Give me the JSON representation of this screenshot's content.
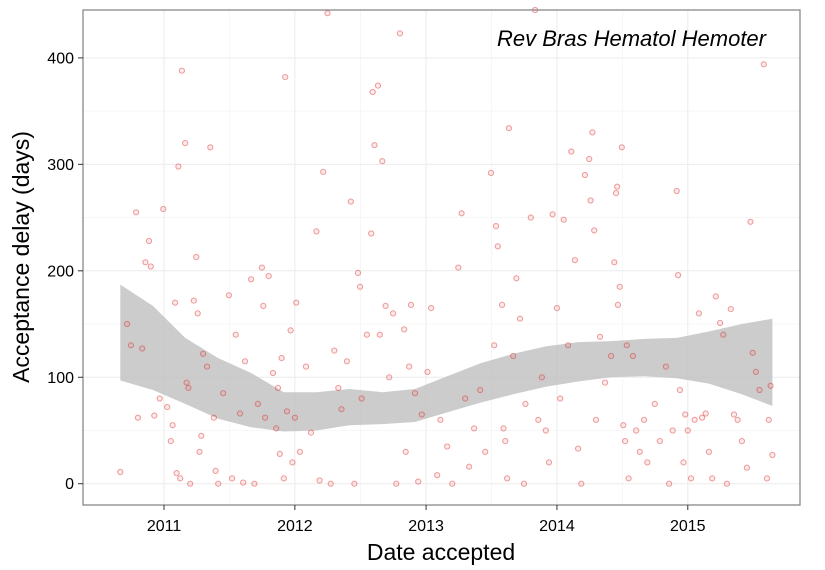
{
  "chart_data": {
    "type": "scatter",
    "title": "",
    "annotation": "Rev Bras Hematol Hemoter",
    "xlabel": "Date accepted",
    "ylabel": "Acceptance delay (days)",
    "xlim": [
      "2010-05-20",
      "2015-11-10"
    ],
    "ylim": [
      -20,
      445
    ],
    "x_ticks": [
      {
        "label": "2011",
        "value": "2011-01-01"
      },
      {
        "label": "2012",
        "value": "2012-01-01"
      },
      {
        "label": "2013",
        "value": "2013-01-01"
      },
      {
        "label": "2014",
        "value": "2014-01-01"
      },
      {
        "label": "2015",
        "value": "2015-01-01"
      }
    ],
    "y_ticks": [
      0,
      100,
      200,
      300,
      400
    ],
    "grid": true,
    "smooth": {
      "x": [
        "2010-09-01",
        "2010-12-01",
        "2011-03-01",
        "2011-06-01",
        "2011-09-01",
        "2011-12-01",
        "2012-03-01",
        "2012-06-01",
        "2012-09-01",
        "2012-12-01",
        "2013-03-01",
        "2013-06-01",
        "2013-09-01",
        "2013-12-01",
        "2014-03-01",
        "2014-06-01",
        "2014-09-01",
        "2014-12-01",
        "2015-03-01",
        "2015-06-01",
        "2015-08-25"
      ],
      "fit": [
        142,
        128,
        106,
        90,
        78,
        68,
        68,
        72,
        71,
        74,
        84,
        94,
        103,
        111,
        115,
        117,
        118,
        118,
        119,
        118,
        114
      ],
      "lower": [
        97,
        88,
        75,
        61,
        53,
        49,
        50,
        55,
        56,
        58,
        67,
        76,
        84,
        91,
        96,
        100,
        101,
        99,
        94,
        84,
        73
      ],
      "upper": [
        187,
        167,
        137,
        118,
        104,
        86,
        86,
        89,
        86,
        89,
        101,
        113,
        122,
        129,
        133,
        134,
        136,
        137,
        143,
        150,
        155
      ]
    },
    "points": [
      {
        "x": "2010-09-01",
        "y": 11
      },
      {
        "x": "2010-09-20",
        "y": 150
      },
      {
        "x": "2010-10-01",
        "y": 130
      },
      {
        "x": "2010-10-15",
        "y": 255
      },
      {
        "x": "2010-10-20",
        "y": 62
      },
      {
        "x": "2010-11-01",
        "y": 127
      },
      {
        "x": "2010-11-10",
        "y": 208
      },
      {
        "x": "2010-11-20",
        "y": 228
      },
      {
        "x": "2010-11-25",
        "y": 204
      },
      {
        "x": "2010-12-05",
        "y": 64
      },
      {
        "x": "2010-12-20",
        "y": 80
      },
      {
        "x": "2010-12-30",
        "y": 258
      },
      {
        "x": "2011-01-10",
        "y": 72
      },
      {
        "x": "2011-01-20",
        "y": 40
      },
      {
        "x": "2011-01-25",
        "y": 55
      },
      {
        "x": "2011-02-01",
        "y": 170
      },
      {
        "x": "2011-02-05",
        "y": 10
      },
      {
        "x": "2011-02-10",
        "y": 298
      },
      {
        "x": "2011-02-15",
        "y": 5
      },
      {
        "x": "2011-02-20",
        "y": 388
      },
      {
        "x": "2011-03-01",
        "y": 320
      },
      {
        "x": "2011-03-05",
        "y": 95
      },
      {
        "x": "2011-03-10",
        "y": 90
      },
      {
        "x": "2011-03-15",
        "y": 0
      },
      {
        "x": "2011-03-25",
        "y": 172
      },
      {
        "x": "2011-04-01",
        "y": 213
      },
      {
        "x": "2011-04-05",
        "y": 160
      },
      {
        "x": "2011-04-10",
        "y": 30
      },
      {
        "x": "2011-04-15",
        "y": 45
      },
      {
        "x": "2011-04-20",
        "y": 122
      },
      {
        "x": "2011-05-01",
        "y": 110
      },
      {
        "x": "2011-05-10",
        "y": 316
      },
      {
        "x": "2011-05-20",
        "y": 62
      },
      {
        "x": "2011-05-25",
        "y": 12
      },
      {
        "x": "2011-06-01",
        "y": 0
      },
      {
        "x": "2011-06-15",
        "y": 85
      },
      {
        "x": "2011-07-01",
        "y": 177
      },
      {
        "x": "2011-07-10",
        "y": 5
      },
      {
        "x": "2011-07-20",
        "y": 140
      },
      {
        "x": "2011-08-01",
        "y": 66
      },
      {
        "x": "2011-08-10",
        "y": 1
      },
      {
        "x": "2011-08-15",
        "y": 115
      },
      {
        "x": "2011-09-01",
        "y": 192
      },
      {
        "x": "2011-09-10",
        "y": 0
      },
      {
        "x": "2011-09-20",
        "y": 75
      },
      {
        "x": "2011-10-01",
        "y": 203
      },
      {
        "x": "2011-10-05",
        "y": 167
      },
      {
        "x": "2011-10-10",
        "y": 62
      },
      {
        "x": "2011-10-20",
        "y": 195
      },
      {
        "x": "2011-11-01",
        "y": 104
      },
      {
        "x": "2011-11-10",
        "y": 52
      },
      {
        "x": "2011-11-15",
        "y": 90
      },
      {
        "x": "2011-11-20",
        "y": 28
      },
      {
        "x": "2011-11-25",
        "y": 118
      },
      {
        "x": "2011-12-01",
        "y": 5
      },
      {
        "x": "2011-12-05",
        "y": 382
      },
      {
        "x": "2011-12-10",
        "y": 68
      },
      {
        "x": "2011-12-20",
        "y": 144
      },
      {
        "x": "2011-12-25",
        "y": 20
      },
      {
        "x": "2012-01-01",
        "y": 62
      },
      {
        "x": "2012-01-05",
        "y": 170
      },
      {
        "x": "2012-01-15",
        "y": 30
      },
      {
        "x": "2012-02-01",
        "y": 110
      },
      {
        "x": "2012-02-15",
        "y": 48
      },
      {
        "x": "2012-03-01",
        "y": 237
      },
      {
        "x": "2012-03-10",
        "y": 3
      },
      {
        "x": "2012-03-20",
        "y": 293
      },
      {
        "x": "2012-04-01",
        "y": 442
      },
      {
        "x": "2012-04-10",
        "y": 0
      },
      {
        "x": "2012-04-20",
        "y": 125
      },
      {
        "x": "2012-05-01",
        "y": 90
      },
      {
        "x": "2012-05-10",
        "y": 70
      },
      {
        "x": "2012-05-25",
        "y": 115
      },
      {
        "x": "2012-06-05",
        "y": 265
      },
      {
        "x": "2012-06-15",
        "y": 0
      },
      {
        "x": "2012-06-25",
        "y": 198
      },
      {
        "x": "2012-07-01",
        "y": 185
      },
      {
        "x": "2012-07-05",
        "y": 80
      },
      {
        "x": "2012-07-20",
        "y": 140
      },
      {
        "x": "2012-08-01",
        "y": 235
      },
      {
        "x": "2012-08-05",
        "y": 368
      },
      {
        "x": "2012-08-10",
        "y": 318
      },
      {
        "x": "2012-08-20",
        "y": 374
      },
      {
        "x": "2012-08-25",
        "y": 140
      },
      {
        "x": "2012-09-01",
        "y": 303
      },
      {
        "x": "2012-09-10",
        "y": 167
      },
      {
        "x": "2012-09-20",
        "y": 100
      },
      {
        "x": "2012-10-01",
        "y": 160
      },
      {
        "x": "2012-10-10",
        "y": 0
      },
      {
        "x": "2012-10-20",
        "y": 423
      },
      {
        "x": "2012-11-01",
        "y": 145
      },
      {
        "x": "2012-11-05",
        "y": 30
      },
      {
        "x": "2012-11-15",
        "y": 110
      },
      {
        "x": "2012-11-20",
        "y": 168
      },
      {
        "x": "2012-12-01",
        "y": 85
      },
      {
        "x": "2012-12-10",
        "y": 2
      },
      {
        "x": "2012-12-20",
        "y": 65
      },
      {
        "x": "2013-01-05",
        "y": 105
      },
      {
        "x": "2013-01-15",
        "y": 165
      },
      {
        "x": "2013-02-01",
        "y": 8
      },
      {
        "x": "2013-02-10",
        "y": 60
      },
      {
        "x": "2013-03-01",
        "y": 35
      },
      {
        "x": "2013-03-15",
        "y": 0
      },
      {
        "x": "2013-04-01",
        "y": 203
      },
      {
        "x": "2013-04-10",
        "y": 254
      },
      {
        "x": "2013-04-20",
        "y": 80
      },
      {
        "x": "2013-05-01",
        "y": 16
      },
      {
        "x": "2013-05-15",
        "y": 52
      },
      {
        "x": "2013-06-01",
        "y": 88
      },
      {
        "x": "2013-06-15",
        "y": 30
      },
      {
        "x": "2013-07-01",
        "y": 292
      },
      {
        "x": "2013-07-10",
        "y": 130
      },
      {
        "x": "2013-07-15",
        "y": 242
      },
      {
        "x": "2013-07-20",
        "y": 223
      },
      {
        "x": "2013-08-01",
        "y": 168
      },
      {
        "x": "2013-08-05",
        "y": 52
      },
      {
        "x": "2013-08-10",
        "y": 40
      },
      {
        "x": "2013-08-15",
        "y": 5
      },
      {
        "x": "2013-08-20",
        "y": 334
      },
      {
        "x": "2013-09-01",
        "y": 120
      },
      {
        "x": "2013-09-10",
        "y": 193
      },
      {
        "x": "2013-09-20",
        "y": 155
      },
      {
        "x": "2013-10-01",
        "y": 0
      },
      {
        "x": "2013-10-05",
        "y": 75
      },
      {
        "x": "2013-10-20",
        "y": 250
      },
      {
        "x": "2013-11-01",
        "y": 445
      },
      {
        "x": "2013-11-10",
        "y": 60
      },
      {
        "x": "2013-11-20",
        "y": 100
      },
      {
        "x": "2013-12-01",
        "y": 50
      },
      {
        "x": "2013-12-10",
        "y": 20
      },
      {
        "x": "2013-12-20",
        "y": 253
      },
      {
        "x": "2014-01-01",
        "y": 165
      },
      {
        "x": "2014-01-10",
        "y": 80
      },
      {
        "x": "2014-01-20",
        "y": 248
      },
      {
        "x": "2014-02-01",
        "y": 130
      },
      {
        "x": "2014-02-10",
        "y": 312
      },
      {
        "x": "2014-02-20",
        "y": 210
      },
      {
        "x": "2014-03-01",
        "y": 33
      },
      {
        "x": "2014-03-10",
        "y": 0
      },
      {
        "x": "2014-03-20",
        "y": 290
      },
      {
        "x": "2014-04-01",
        "y": 305
      },
      {
        "x": "2014-04-05",
        "y": 266
      },
      {
        "x": "2014-04-10",
        "y": 330
      },
      {
        "x": "2014-04-15",
        "y": 238
      },
      {
        "x": "2014-04-20",
        "y": 60
      },
      {
        "x": "2014-05-01",
        "y": 138
      },
      {
        "x": "2014-05-15",
        "y": 95
      },
      {
        "x": "2014-06-01",
        "y": 120
      },
      {
        "x": "2014-06-10",
        "y": 208
      },
      {
        "x": "2014-06-15",
        "y": 273
      },
      {
        "x": "2014-06-18",
        "y": 279
      },
      {
        "x": "2014-06-20",
        "y": 168
      },
      {
        "x": "2014-06-25",
        "y": 185
      },
      {
        "x": "2014-07-01",
        "y": 316
      },
      {
        "x": "2014-07-05",
        "y": 55
      },
      {
        "x": "2014-07-10",
        "y": 40
      },
      {
        "x": "2014-07-15",
        "y": 130
      },
      {
        "x": "2014-07-20",
        "y": 5
      },
      {
        "x": "2014-08-01",
        "y": 120
      },
      {
        "x": "2014-08-10",
        "y": 50
      },
      {
        "x": "2014-08-20",
        "y": 30
      },
      {
        "x": "2014-09-01",
        "y": 60
      },
      {
        "x": "2014-09-10",
        "y": 20
      },
      {
        "x": "2014-10-01",
        "y": 75
      },
      {
        "x": "2014-10-15",
        "y": 40
      },
      {
        "x": "2014-11-01",
        "y": 110
      },
      {
        "x": "2014-11-10",
        "y": 0
      },
      {
        "x": "2014-11-20",
        "y": 50
      },
      {
        "x": "2014-12-01",
        "y": 275
      },
      {
        "x": "2014-12-05",
        "y": 196
      },
      {
        "x": "2014-12-10",
        "y": 88
      },
      {
        "x": "2014-12-20",
        "y": 20
      },
      {
        "x": "2014-12-25",
        "y": 65
      },
      {
        "x": "2015-01-01",
        "y": 50
      },
      {
        "x": "2015-01-10",
        "y": 5
      },
      {
        "x": "2015-01-20",
        "y": 60
      },
      {
        "x": "2015-02-01",
        "y": 160
      },
      {
        "x": "2015-02-10",
        "y": 62
      },
      {
        "x": "2015-02-20",
        "y": 66
      },
      {
        "x": "2015-03-01",
        "y": 30
      },
      {
        "x": "2015-03-10",
        "y": 5
      },
      {
        "x": "2015-03-20",
        "y": 176
      },
      {
        "x": "2015-04-01",
        "y": 151
      },
      {
        "x": "2015-04-10",
        "y": 140
      },
      {
        "x": "2015-04-20",
        "y": 0
      },
      {
        "x": "2015-05-01",
        "y": 164
      },
      {
        "x": "2015-05-10",
        "y": 65
      },
      {
        "x": "2015-05-20",
        "y": 60
      },
      {
        "x": "2015-06-01",
        "y": 40
      },
      {
        "x": "2015-06-15",
        "y": 15
      },
      {
        "x": "2015-06-25",
        "y": 246
      },
      {
        "x": "2015-07-01",
        "y": 123
      },
      {
        "x": "2015-07-10",
        "y": 105
      },
      {
        "x": "2015-07-20",
        "y": 88
      },
      {
        "x": "2015-08-01",
        "y": 394
      },
      {
        "x": "2015-08-10",
        "y": 5
      },
      {
        "x": "2015-08-15",
        "y": 60
      },
      {
        "x": "2015-08-20",
        "y": 92
      },
      {
        "x": "2015-08-25",
        "y": 27
      }
    ]
  }
}
